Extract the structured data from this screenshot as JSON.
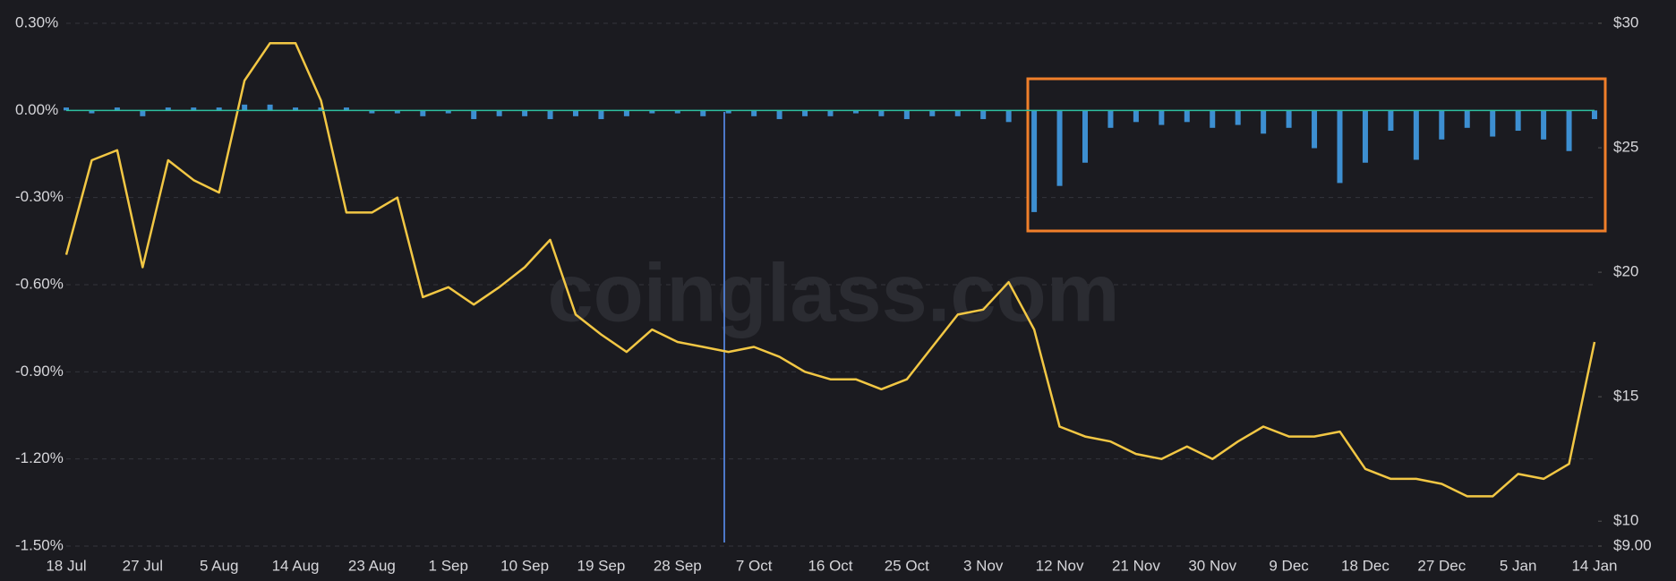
{
  "chart_data": {
    "type": "combo",
    "watermark": "coinglass.com",
    "categories": [
      "18 Jul",
      null,
      null,
      "27 Jul",
      null,
      null,
      "5 Aug",
      null,
      null,
      "14 Aug",
      null,
      null,
      "23 Aug",
      null,
      null,
      "1 Sep",
      null,
      null,
      "10 Sep",
      null,
      null,
      "19 Sep",
      null,
      null,
      "28 Sep",
      null,
      null,
      "7 Oct",
      null,
      null,
      "16 Oct",
      null,
      null,
      "25 Oct",
      null,
      null,
      "3 Nov",
      null,
      null,
      "12 Nov",
      null,
      null,
      "21 Nov",
      null,
      null,
      "30 Nov",
      null,
      null,
      "9 Dec",
      null,
      null,
      "18 Dec",
      null,
      null,
      "27 Dec",
      null,
      null,
      "5 Jan",
      null,
      null,
      "14 Jan"
    ],
    "ylim": [
      -1.5,
      0.3
    ],
    "yticks": [
      {
        "value": 0.3,
        "label": "0.30%"
      },
      {
        "value": 0,
        "label": "0.00%"
      },
      {
        "value": -0.3,
        "label": "-0.30%"
      },
      {
        "value": -0.6,
        "label": "-0.60%"
      },
      {
        "value": -0.9,
        "label": "-0.90%"
      },
      {
        "value": -1.2,
        "label": "-1.20%"
      },
      {
        "value": -1.5,
        "label": "-1.50%"
      }
    ],
    "y2lim": [
      9,
      30
    ],
    "y2ticks": [
      {
        "value": 30,
        "label": "$30"
      },
      {
        "value": 25,
        "label": "$25"
      },
      {
        "value": 20,
        "label": "$20"
      },
      {
        "value": 15,
        "label": "$15"
      },
      {
        "value": 10,
        "label": "$10"
      },
      {
        "value": 9,
        "label": "$9.00"
      }
    ],
    "grid": true,
    "series": [
      {
        "type": "bar",
        "color": "#3d8fd1",
        "values": [
          0.01,
          -0.01,
          0.01,
          -0.02,
          0.01,
          0.01,
          0.01,
          0.02,
          0.02,
          0.01,
          0.01,
          0.01,
          -0.01,
          -0.01,
          -0.02,
          -0.01,
          -0.03,
          -0.02,
          -0.02,
          -0.03,
          -0.02,
          -0.03,
          -0.02,
          -0.01,
          -0.01,
          -0.02,
          -0.01,
          -0.02,
          -0.03,
          -0.02,
          -0.02,
          -0.01,
          -0.02,
          -0.03,
          -0.02,
          -0.02,
          -0.03,
          -0.04,
          -0.35,
          -0.26,
          -0.18,
          -0.06,
          -0.04,
          -0.05,
          -0.04,
          -0.06,
          -0.05,
          -0.08,
          -0.06,
          -0.13,
          -0.25,
          -0.18,
          -0.07,
          -0.17,
          -0.1,
          -0.06,
          -0.09,
          -0.07,
          -0.1,
          -0.14,
          -0.03
        ]
      },
      {
        "type": "line",
        "axis": "y2",
        "color": "#f2c744",
        "values": [
          20.7,
          24.5,
          24.9,
          20.2,
          24.5,
          23.7,
          23.2,
          27.7,
          29.2,
          29.2,
          26.9,
          22.4,
          22.4,
          23.0,
          19.0,
          19.4,
          18.7,
          19.4,
          20.2,
          21.3,
          18.3,
          17.5,
          16.8,
          17.7,
          17.2,
          17.0,
          16.8,
          17.0,
          16.6,
          16.0,
          15.7,
          15.7,
          15.3,
          15.7,
          17.0,
          18.3,
          18.5,
          19.6,
          17.7,
          13.8,
          13.4,
          13.2,
          12.7,
          12.5,
          13.0,
          12.5,
          13.2,
          13.8,
          13.4,
          13.4,
          13.6,
          12.1,
          11.7,
          11.7,
          11.5,
          11.0,
          11.0,
          11.9,
          11.7,
          12.3,
          17.2
        ]
      }
    ]
  }
}
